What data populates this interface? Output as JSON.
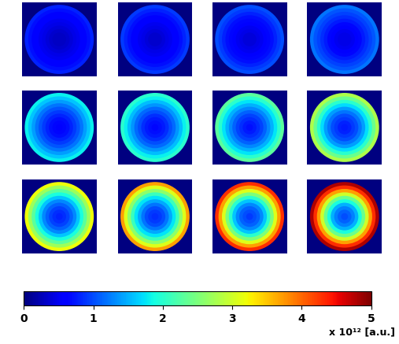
{
  "chart_data": {
    "type": "heatmap",
    "tick_labels": false,
    "radii": [
      0.1,
      0.2,
      0.3,
      0.4,
      0.5,
      0.6,
      0.7,
      0.8,
      0.9,
      1.0
    ],
    "panels": [
      [
        0.3,
        0.3,
        0.35,
        0.4,
        0.45,
        0.5,
        0.55,
        0.6,
        0.7,
        0.8
      ],
      [
        0.35,
        0.35,
        0.4,
        0.45,
        0.5,
        0.55,
        0.6,
        0.7,
        0.8,
        0.9
      ],
      [
        0.4,
        0.4,
        0.45,
        0.5,
        0.55,
        0.65,
        0.7,
        0.8,
        0.9,
        1.0
      ],
      [
        0.45,
        0.45,
        0.5,
        0.55,
        0.65,
        0.75,
        0.85,
        0.95,
        1.05,
        1.2
      ],
      [
        0.6,
        0.65,
        0.7,
        0.8,
        0.9,
        1.05,
        1.2,
        1.4,
        1.6,
        1.8
      ],
      [
        0.65,
        0.7,
        0.75,
        0.85,
        1.0,
        1.15,
        1.35,
        1.55,
        1.8,
        2.0
      ],
      [
        0.7,
        0.75,
        0.85,
        0.95,
        1.1,
        1.3,
        1.5,
        1.75,
        2.0,
        2.3
      ],
      [
        0.75,
        0.8,
        0.9,
        1.0,
        1.2,
        1.4,
        1.7,
        2.0,
        2.4,
        2.8
      ],
      [
        0.8,
        0.85,
        0.95,
        1.1,
        1.3,
        1.6,
        1.9,
        2.3,
        2.7,
        3.2
      ],
      [
        0.85,
        0.9,
        1.0,
        1.2,
        1.45,
        1.75,
        2.1,
        2.6,
        3.1,
        3.7
      ],
      [
        0.9,
        1.0,
        1.1,
        1.3,
        1.6,
        2.0,
        2.5,
        3.1,
        3.7,
        4.3
      ],
      [
        1.0,
        1.1,
        1.25,
        1.5,
        1.9,
        2.4,
        3.0,
        3.7,
        4.3,
        4.8
      ]
    ],
    "colorbar": {
      "range": [
        0,
        5
      ],
      "ticks": [
        0,
        1,
        2,
        3,
        4,
        5
      ],
      "label": "x 10¹² [a.u.]"
    }
  }
}
